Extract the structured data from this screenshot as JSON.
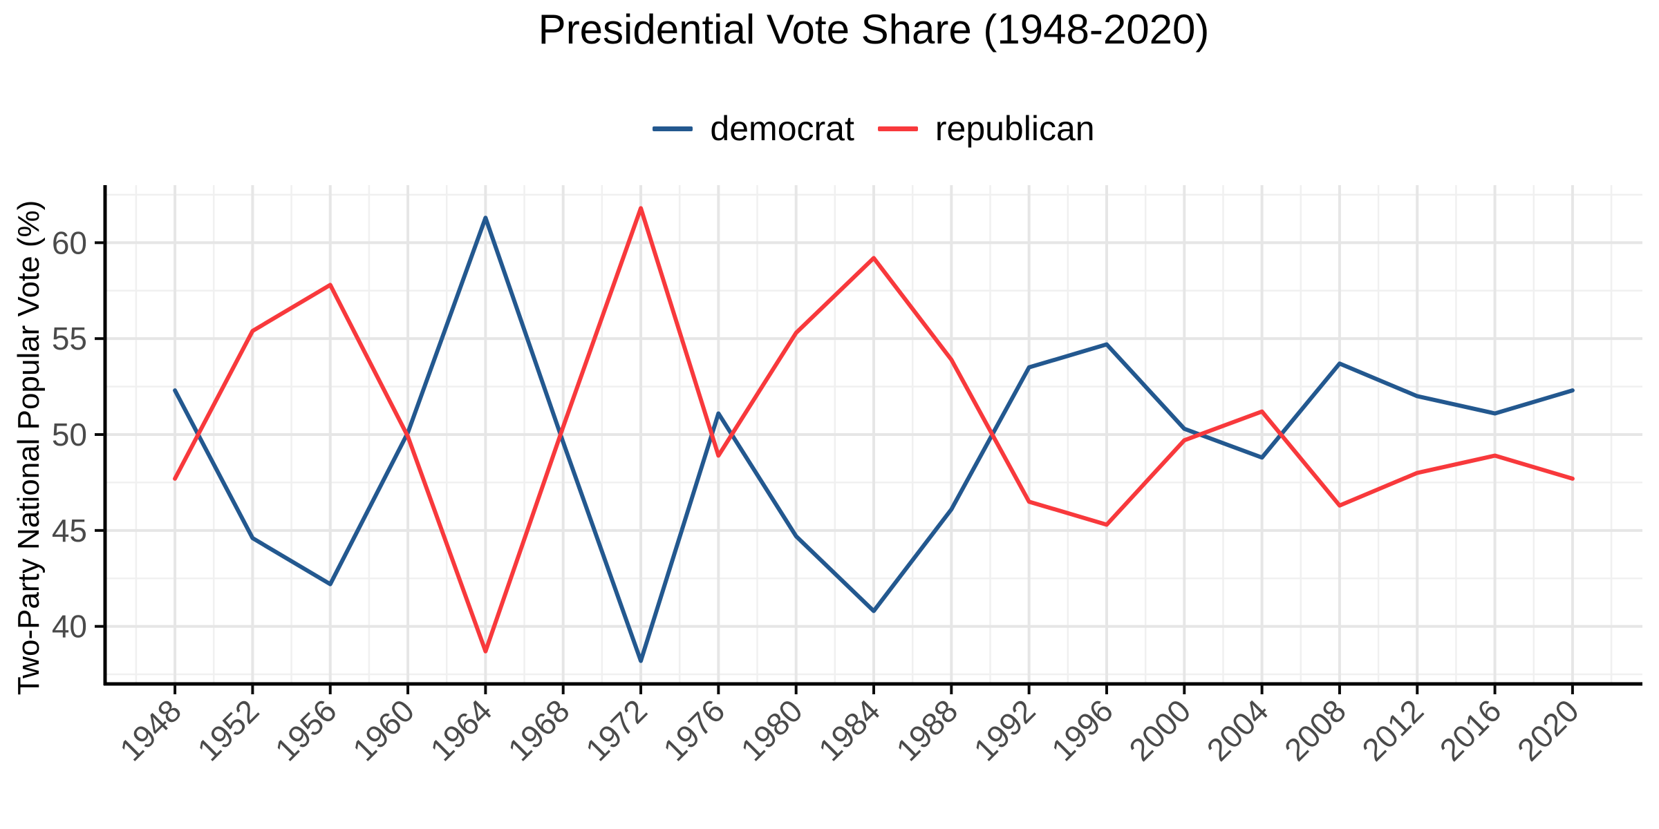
{
  "chart_data": {
    "type": "line",
    "title": "Presidential Vote Share (1948-2020)",
    "xlabel": "",
    "ylabel": "Two-Party National Popular Vote (%)",
    "x": [
      1948,
      1952,
      1956,
      1960,
      1964,
      1968,
      1972,
      1976,
      1980,
      1984,
      1988,
      1992,
      1996,
      2000,
      2004,
      2008,
      2012,
      2016,
      2020
    ],
    "series": [
      {
        "name": "democrat",
        "color": "#23588F",
        "values": [
          52.3,
          44.6,
          42.2,
          50.1,
          61.3,
          49.6,
          38.2,
          51.1,
          44.7,
          40.8,
          46.1,
          53.5,
          54.7,
          50.3,
          48.8,
          53.7,
          52.0,
          51.1,
          52.3
        ]
      },
      {
        "name": "republican",
        "color": "#F8393C",
        "values": [
          47.7,
          55.4,
          57.8,
          49.9,
          38.7,
          50.4,
          61.8,
          48.9,
          55.3,
          59.2,
          53.9,
          46.5,
          45.3,
          49.7,
          51.2,
          46.3,
          48.0,
          48.9,
          47.7
        ]
      }
    ],
    "x_ticks": [
      1948,
      1952,
      1956,
      1960,
      1964,
      1968,
      1972,
      1976,
      1980,
      1984,
      1988,
      1992,
      1996,
      2000,
      2004,
      2008,
      2012,
      2016,
      2020
    ],
    "y_ticks": [
      40,
      45,
      50,
      55,
      60
    ],
    "xlim": [
      1944.4,
      2023.6
    ],
    "ylim": [
      37.0,
      63.0
    ],
    "legend_position": "top",
    "grid": {
      "show": true,
      "show_minor": true,
      "major_color": "#E6E6E6",
      "minor_color": "#F0F0F0"
    },
    "axis": {
      "line_color": "#000000",
      "tick_color": "#0A0A0A",
      "tick_label_color": "#4A4A4A",
      "title_color": "#000000"
    }
  }
}
